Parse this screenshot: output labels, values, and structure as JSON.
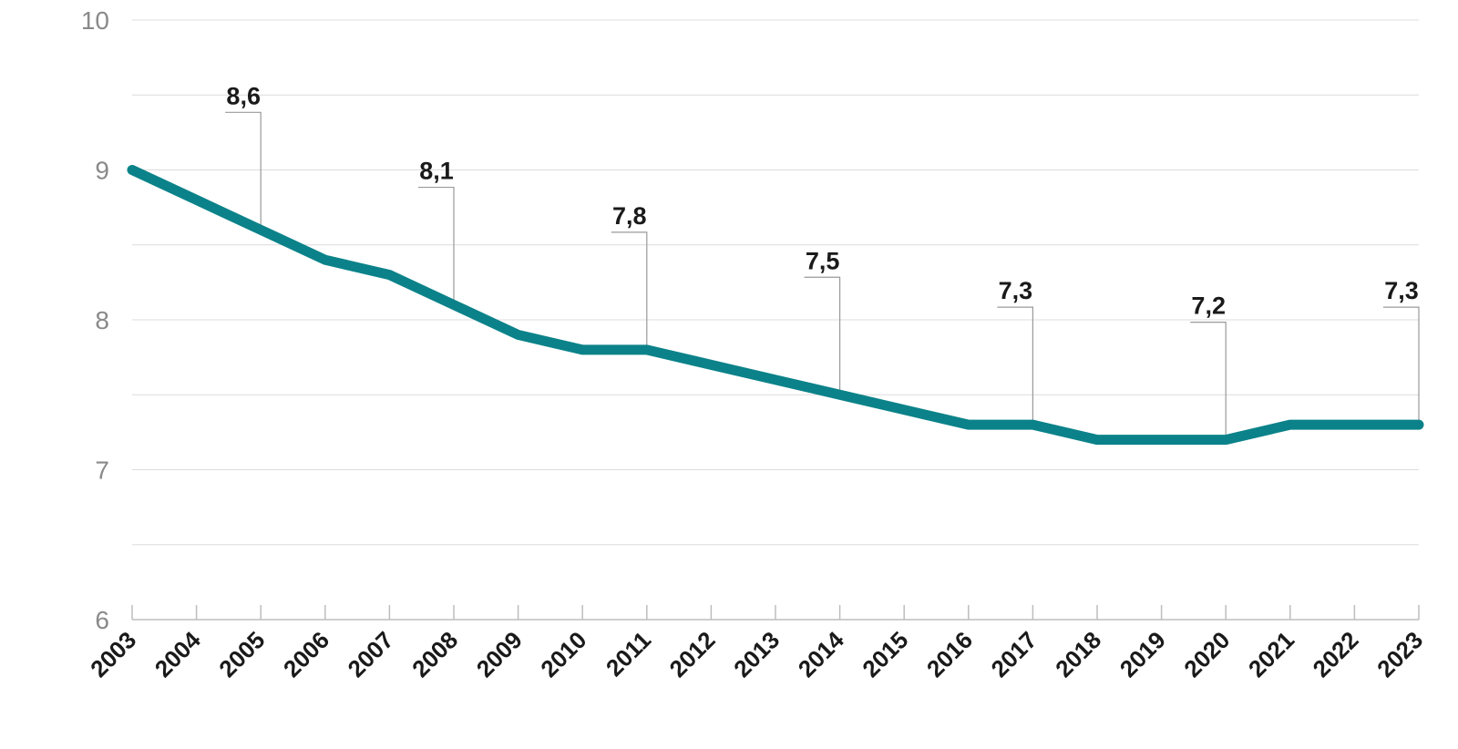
{
  "chart_data": {
    "type": "line",
    "x": [
      "2003",
      "2004",
      "2005",
      "2006",
      "2007",
      "2008",
      "2009",
      "2010",
      "2011",
      "2012",
      "2013",
      "2014",
      "2015",
      "2016",
      "2017",
      "2018",
      "2019",
      "2020",
      "2021",
      "2022",
      "2023"
    ],
    "series": [
      {
        "values": [
          9.0,
          8.8,
          8.6,
          8.4,
          8.3,
          8.1,
          7.9,
          7.8,
          7.8,
          7.7,
          7.6,
          7.5,
          7.4,
          7.3,
          7.3,
          7.2,
          7.2,
          7.2,
          7.3,
          7.3,
          7.3
        ]
      }
    ],
    "annotations": [
      {
        "x": "2005",
        "label": "8,6"
      },
      {
        "x": "2008",
        "label": "8,1"
      },
      {
        "x": "2011",
        "label": "7,8"
      },
      {
        "x": "2014",
        "label": "7,5"
      },
      {
        "x": "2017",
        "label": "7,3"
      },
      {
        "x": "2020",
        "label": "7,2"
      },
      {
        "x": "2023",
        "label": "7,3"
      }
    ],
    "yticks": [
      "6",
      "7",
      "8",
      "9",
      "10"
    ],
    "ylim": [
      6,
      10
    ],
    "grid": true,
    "line_color": "#0b8289",
    "title": "",
    "xlabel": "",
    "ylabel": ""
  }
}
